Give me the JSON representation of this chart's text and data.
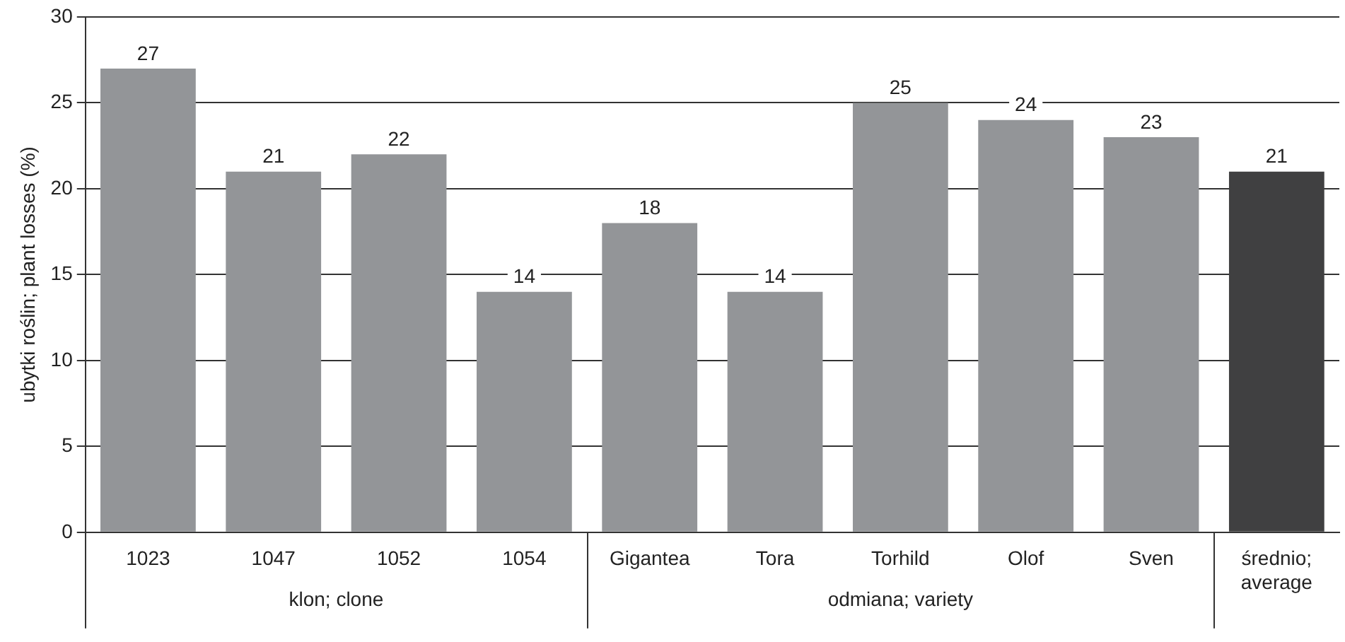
{
  "chart_data": {
    "type": "bar",
    "ylabel": "ubytki roślin; plant losses (%)",
    "categories": [
      "1023",
      "1047",
      "1052",
      "1054",
      "Gigantea",
      "Tora",
      "Torhild",
      "Olof",
      "Sven",
      "średnio; average"
    ],
    "values": [
      27,
      21,
      22,
      14,
      18,
      14,
      25,
      24,
      23,
      21
    ],
    "colors": [
      "#939598",
      "#939598",
      "#939598",
      "#939598",
      "#939598",
      "#939598",
      "#939598",
      "#939598",
      "#939598",
      "#404041"
    ],
    "ylim": [
      0,
      30
    ],
    "yticks": [
      0,
      5,
      10,
      15,
      20,
      25,
      30
    ],
    "grid": "y",
    "data_labels": true,
    "annotations": [
      "klon; clone",
      "odmiana; variety"
    ]
  }
}
